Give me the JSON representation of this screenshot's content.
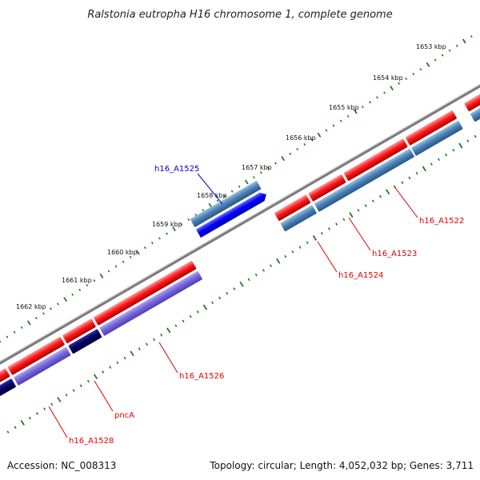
{
  "title": "Ralstonia eutropha H16 chromosome 1, complete genome",
  "footer": {
    "accession": "Accession: NC_008313",
    "summary": "Topology: circular; Length: 4,052,032 bp; Genes: 3,711"
  },
  "scale_labels": [
    "1653 kbp",
    "1654 kbp",
    "1655 kbp",
    "1656 kbp",
    "1657 kbp",
    "1658 kbp",
    "1659 kbp",
    "1660 kbp",
    "1661 kbp",
    "1662 kbp"
  ],
  "gene_labels": [
    {
      "id": "h16_A1522",
      "text": "h16_A1522",
      "color": "red"
    },
    {
      "id": "h16_A1523",
      "text": "h16_A1523",
      "color": "red"
    },
    {
      "id": "h16_A1524",
      "text": "h16_A1524",
      "color": "red"
    },
    {
      "id": "h16_A1525",
      "text": "h16_A1525",
      "color": "blue"
    },
    {
      "id": "h16_A1526",
      "text": "h16_A1526",
      "color": "red"
    },
    {
      "id": "pncA",
      "text": "pncA",
      "color": "red"
    },
    {
      "id": "h16_A1528",
      "text": "h16_A1528",
      "color": "red"
    }
  ],
  "colors": {
    "backbone": "#7a7a7a",
    "scale_ticks": "#1f7a1f",
    "forward_cds": "#ff1a1a",
    "reverse_cds_steel": "#4a83b8",
    "reverse_cds_blue": "#0000ff",
    "reverse_cds_purple": "#7766dd",
    "reverse_cds_navy": "#000066",
    "label_red": "#e00000",
    "label_blue": "#0000cc"
  }
}
